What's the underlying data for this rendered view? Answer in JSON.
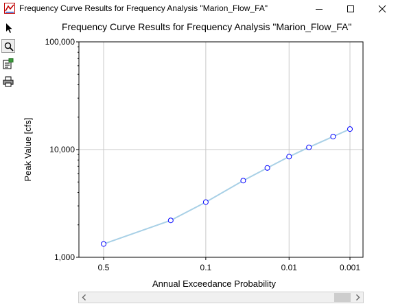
{
  "window": {
    "title": "Frequency Curve Results for Frequency Analysis \"Marion_Flow_FA\""
  },
  "toolbar": {
    "tools": [
      "select-arrow-icon",
      "zoom-icon",
      "properties-icon",
      "print-icon"
    ]
  },
  "chart_data": {
    "type": "line",
    "title": "Frequency Curve Results for Frequency Analysis \"Marion_Flow_FA\"",
    "xlabel": "Annual Exceedance Probability",
    "ylabel": "Peak Value [cfs]",
    "x_scale": "probability",
    "y_scale": "log",
    "xlim": [
      0.5,
      0.001
    ],
    "ylim": [
      1000,
      100000
    ],
    "x_ticks": [
      0.5,
      0.1,
      0.01,
      0.001
    ],
    "x_tick_labels": [
      "0.5",
      "0.1",
      "0.01",
      "0.001"
    ],
    "y_ticks": [
      1000,
      10000,
      100000
    ],
    "y_tick_labels": [
      "1,000",
      "10,000",
      "100,000"
    ],
    "grid": true,
    "series": [
      {
        "x": [
          0.5,
          0.2,
          0.1,
          0.04,
          0.02,
          0.01,
          0.005,
          0.002,
          0.001
        ],
        "y": [
          1330,
          2200,
          3250,
          5150,
          6750,
          8600,
          10500,
          13200,
          15500
        ],
        "color": "#a8d0e6",
        "marker_color": "#0000ff"
      }
    ]
  },
  "scrollbar": {
    "thumb_fraction": 0.93
  }
}
